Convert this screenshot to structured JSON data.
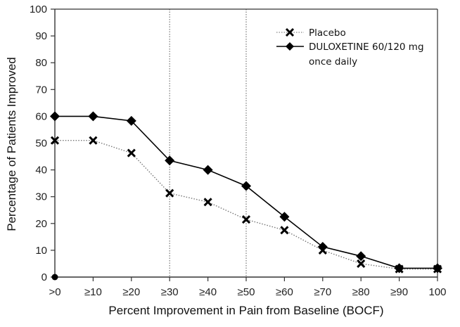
{
  "chart_data": {
    "type": "line",
    "title": "",
    "xlabel": "Percent Improvement in Pain from Baseline (BOCF)",
    "ylabel": "Percentage of Patients Improved",
    "categories": [
      ">0",
      "≥10",
      "≥20",
      "≥30",
      "≥40",
      "≥50",
      "≥60",
      "≥70",
      "≥80",
      "≥90",
      "100"
    ],
    "ylim": [
      0,
      100
    ],
    "yticks": [
      "0",
      "10",
      "20",
      "30",
      "40",
      "50",
      "60",
      "70",
      "80",
      "90",
      "100"
    ],
    "grid": false,
    "reference_lines_at_categories": [
      "≥30",
      "≥50"
    ],
    "legend_position": "top-right",
    "series": [
      {
        "name": "Placebo",
        "marker": "x",
        "line_style": "dotted",
        "values": [
          51,
          51,
          46.3,
          31.3,
          28,
          21.5,
          17.5,
          10,
          5,
          3,
          3
        ]
      },
      {
        "name": "DULOXETINE 60/120 mg once daily",
        "legend_lines": [
          "DULOXETINE 60/120 mg",
          "once daily"
        ],
        "marker": "diamond",
        "line_style": "solid",
        "values": [
          60,
          60,
          58.3,
          43.5,
          40,
          34,
          22.5,
          11.3,
          7.8,
          3.3,
          3.3
        ]
      }
    ]
  }
}
